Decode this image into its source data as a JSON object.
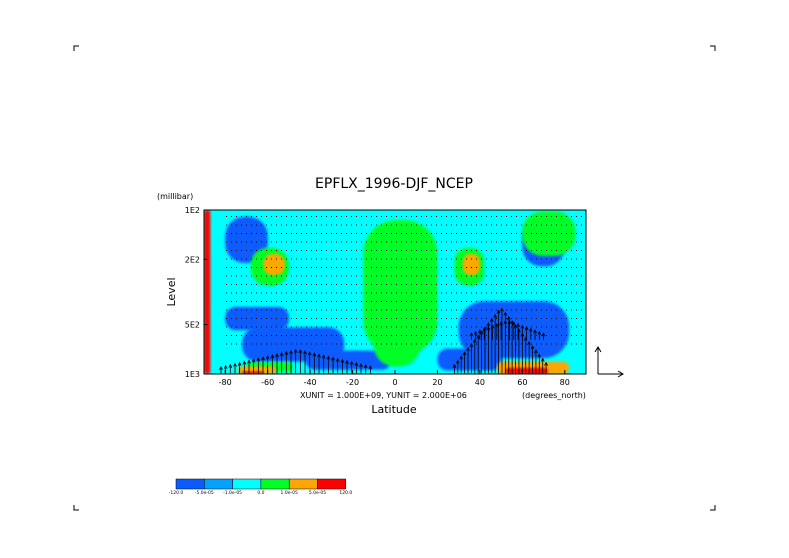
{
  "chart_data": {
    "type": "heatmap",
    "title": "EPFLX_1996-DJF_NCEP",
    "xlabel": "Latitude",
    "ylabel": "Level",
    "x_units": "(degrees_north)",
    "y_units": "(millibar)",
    "xlim": [
      -90,
      90
    ],
    "ylim": [
      1000,
      100
    ],
    "y_scale": "log",
    "x_ticks": [
      -80,
      -60,
      -40,
      -20,
      0,
      20,
      40,
      60,
      80
    ],
    "y_ticks": [
      {
        "value": 100,
        "label": "1E2"
      },
      {
        "value": 200,
        "label": "2E2"
      },
      {
        "value": 500,
        "label": "5E2"
      },
      {
        "value": 1000,
        "label": "1E3"
      }
    ],
    "vector_note": "XUNIT = 1.000E+09, YUNIT = 2.000E+06",
    "colorbar": {
      "colors": [
        "#0a5cff",
        "#00a2ff",
        "#00ffff",
        "#00ff28",
        "#ffa600",
        "#ff0000"
      ],
      "labels": [
        "-120.0",
        "-5.0e-05",
        "-1.0e-05",
        "0.0",
        "1.0e-05",
        "5.0e-05",
        "120.0"
      ]
    },
    "background_color": "#00ffff",
    "regions": [
      {
        "color": "#0a5cff",
        "x0": -72,
        "x1": -24,
        "p0": 520,
        "p1": 840
      },
      {
        "color": "#0a5cff",
        "x0": -42,
        "x1": -2,
        "p0": 720,
        "p1": 940
      },
      {
        "color": "#0a5cff",
        "x0": -80,
        "x1": -50,
        "p0": 390,
        "p1": 540
      },
      {
        "color": "#0a5cff",
        "x0": -80,
        "x1": -60,
        "p0": 110,
        "p1": 210
      },
      {
        "color": "#0a5cff",
        "x0": 30,
        "x1": 82,
        "p0": 360,
        "p1": 800
      },
      {
        "color": "#0a5cff",
        "x0": 20,
        "x1": 50,
        "p0": 700,
        "p1": 950
      },
      {
        "color": "#0a5cff",
        "x0": 60,
        "x1": 80,
        "p0": 110,
        "p1": 220
      },
      {
        "color": "#00ff28",
        "x0": -15,
        "x1": 20,
        "p0": 115,
        "p1": 760
      },
      {
        "color": "#00ff28",
        "x0": -10,
        "x1": 12,
        "p0": 320,
        "p1": 900
      },
      {
        "color": "#00ff28",
        "x0": -68,
        "x1": -50,
        "p0": 170,
        "p1": 290
      },
      {
        "color": "#00ff28",
        "x0": 28,
        "x1": 42,
        "p0": 170,
        "p1": 290
      },
      {
        "color": "#00ff28",
        "x0": -70,
        "x1": -48,
        "p0": 850,
        "p1": 970
      },
      {
        "color": "#00ff28",
        "x0": 60,
        "x1": 85,
        "p0": 102,
        "p1": 190
      },
      {
        "color": "#ffa600",
        "x0": -62,
        "x1": -52,
        "p0": 185,
        "p1": 250
      },
      {
        "color": "#ffa600",
        "x0": 32,
        "x1": 40,
        "p0": 185,
        "p1": 250
      },
      {
        "color": "#ffa600",
        "x0": -74,
        "x1": -56,
        "p0": 900,
        "p1": 990
      },
      {
        "color": "#ffa600",
        "x0": 48,
        "x1": 82,
        "p0": 840,
        "p1": 1000
      },
      {
        "color": "#ff0000",
        "x0": 52,
        "x1": 72,
        "p0": 920,
        "p1": 1000
      },
      {
        "color": "#ff0000",
        "x0": -72,
        "x1": -62,
        "p0": 960,
        "p1": 1000
      },
      {
        "color": "#ff0000",
        "x0": -90,
        "x1": -87,
        "p0": 100,
        "p1": 1000
      }
    ]
  }
}
